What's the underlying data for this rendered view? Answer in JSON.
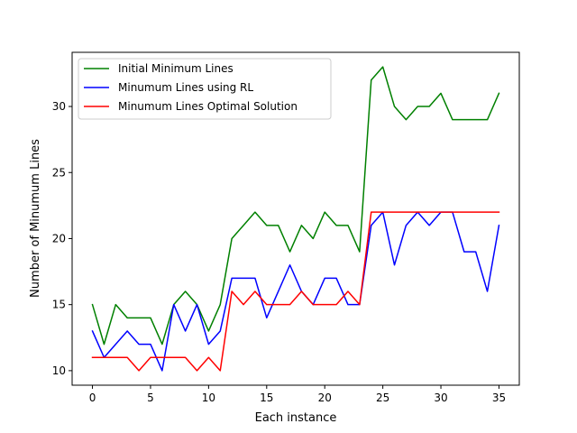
{
  "chart_data": {
    "type": "line",
    "title": "",
    "xlabel": "Each instance",
    "ylabel": "Number of Minumum Lines",
    "xlim": [
      -1.75,
      36.75
    ],
    "ylim": [
      8.9,
      34.1
    ],
    "xticks": [
      0,
      5,
      10,
      15,
      20,
      25,
      30,
      35
    ],
    "yticks": [
      10,
      15,
      20,
      25,
      30
    ],
    "grid": false,
    "legend_position": "upper-left",
    "x": [
      0,
      1,
      2,
      3,
      4,
      5,
      6,
      7,
      8,
      9,
      10,
      11,
      12,
      13,
      14,
      15,
      16,
      17,
      18,
      19,
      20,
      21,
      22,
      23,
      24,
      25,
      26,
      27,
      28,
      29,
      30,
      31,
      32,
      33,
      34,
      35
    ],
    "series": [
      {
        "name": "Initial Minimum Lines",
        "color": "#008000",
        "values": [
          15,
          12,
          15,
          14,
          14,
          14,
          12,
          15,
          16,
          15,
          13,
          15,
          20,
          21,
          22,
          21,
          21,
          19,
          21,
          20,
          22,
          21,
          21,
          19,
          32,
          33,
          30,
          29,
          30,
          30,
          31,
          29,
          29,
          29,
          29,
          31
        ]
      },
      {
        "name": "Minumum Lines using RL",
        "color": "#0000ff",
        "values": [
          13,
          11,
          12,
          13,
          12,
          12,
          10,
          15,
          13,
          15,
          12,
          13,
          17,
          17,
          17,
          14,
          16,
          18,
          16,
          15,
          17,
          17,
          15,
          15,
          21,
          22,
          18,
          21,
          22,
          21,
          22,
          22,
          19,
          19,
          16,
          21
        ]
      },
      {
        "name": "Minumum Lines Optimal Solution",
        "color": "#ff0000",
        "values": [
          11,
          11,
          11,
          11,
          10,
          11,
          11,
          11,
          11,
          10,
          11,
          10,
          16,
          15,
          16,
          15,
          15,
          15,
          16,
          15,
          15,
          15,
          16,
          15,
          22,
          22,
          22,
          22,
          22,
          22,
          22,
          22,
          22,
          22,
          22,
          22
        ]
      }
    ]
  }
}
